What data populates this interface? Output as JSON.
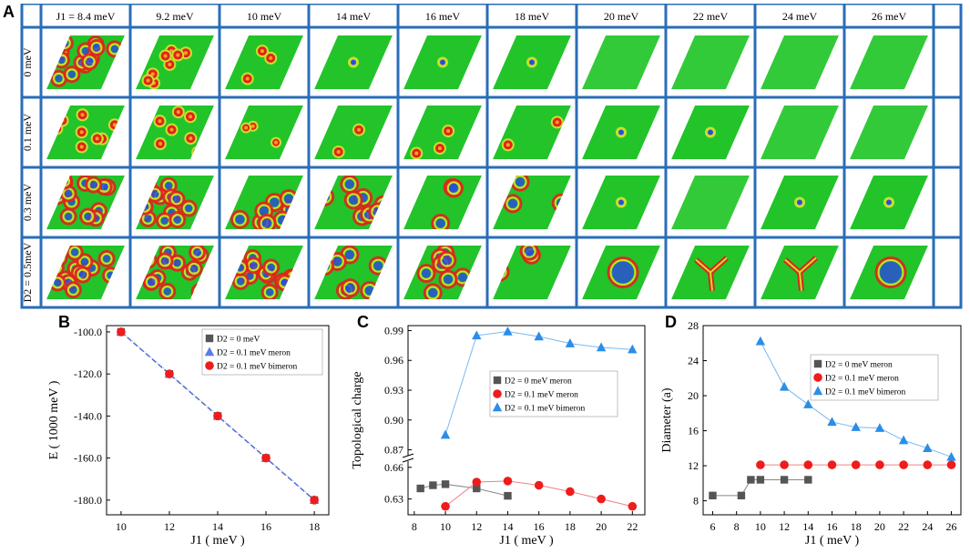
{
  "figure": {
    "panel_letters": [
      "A",
      "B",
      "C",
      "D"
    ],
    "grid": {
      "columns": [
        "J1 = 8.4 meV",
        "9.2 meV",
        "10 meV",
        "14 meV",
        "16 meV",
        "18 meV",
        "20 meV",
        "22 meV",
        "24 meV",
        "26 meV"
      ],
      "rows": [
        "0 meV",
        "0.1 meV",
        "0.3 meV",
        "D2 = 0.5meV"
      ],
      "textures": [
        [
          "dense-domains",
          "bubble-network",
          "few-vortices",
          "single-vortex",
          "single-core",
          "single-core",
          "uniform",
          "uniform",
          "uniform",
          "uniform"
        ],
        [
          "bubble-lattice",
          "bubble-network",
          "elongated-domains",
          "sparse-bubbles",
          "few-bubbles",
          "few-bubbles",
          "single-core",
          "single-core",
          "uniform",
          "uniform"
        ],
        [
          "dense-rings",
          "dense-rings",
          "ring-network",
          "ring-network",
          "sparse-rings",
          "sparse-rings",
          "single-core",
          "uniform",
          "single-core",
          "single-core"
        ],
        [
          "dense-rings",
          "dense-rings",
          "dense-rings",
          "ring-network",
          "ring-network",
          "ring-cluster",
          "large-ring",
          "branched-domain",
          "y-domain",
          "single-domain"
        ]
      ],
      "colors": {
        "background": "#22c42a",
        "low": "#2a4fd6",
        "mid": "#c8e02a",
        "high": "#e0241c",
        "border": "#2a6db8"
      }
    }
  },
  "chart_data": [
    {
      "type": "scatter",
      "panel": "B",
      "xlabel": "J1 ( meV )",
      "ylabel": "E ( 1000 meV )",
      "xlim": [
        9.4,
        18.6
      ],
      "ylim": [
        -187,
        -97
      ],
      "xticks": [
        10,
        12,
        14,
        16,
        18
      ],
      "yticks": [
        -100,
        -120,
        -140,
        -160,
        -180
      ],
      "ytick_labels": [
        "-100.0",
        "-120.0",
        "-140.0",
        "-160.0",
        "-180.0"
      ],
      "legend_position": "top-right",
      "series": [
        {
          "name": "D2 =  0 meV",
          "marker": "square",
          "color": "#555555",
          "x": [
            10,
            12,
            14,
            16,
            18
          ],
          "y": [
            -100,
            -120,
            -140,
            -160,
            -180
          ]
        },
        {
          "name": "D2 = 0.1 meV meron",
          "marker": "triangle",
          "color": "#5a7ce6",
          "x": [
            10,
            12,
            14,
            16,
            18
          ],
          "y": [
            -100,
            -120,
            -140,
            -160,
            -180
          ]
        },
        {
          "name": "D2 = 0.1 meV bimeron",
          "marker": "circle",
          "color": "#ee1c1c",
          "x": [
            10,
            12,
            14,
            16,
            18
          ],
          "y": [
            -100,
            -120,
            -140,
            -160,
            -180
          ]
        }
      ]
    },
    {
      "type": "line",
      "panel": "C",
      "xlabel": "J1 ( meV )",
      "ylabel": "Topological charge",
      "xlim": [
        7.6,
        22.8
      ],
      "axis_break": {
        "lower_ylim": [
          0.615,
          0.665
        ],
        "upper_ylim": [
          0.865,
          0.995
        ]
      },
      "xticks": [
        8,
        10,
        12,
        14,
        16,
        18,
        20,
        22
      ],
      "yticks_lower": [
        0.63,
        0.66
      ],
      "yticks_upper": [
        0.87,
        0.9,
        0.93,
        0.96,
        0.99
      ],
      "ytick_labels_lower": [
        "0.63",
        "0.66"
      ],
      "ytick_labels_upper": [
        "0.87",
        "0.90",
        "0.93",
        "0.96",
        "0.99"
      ],
      "legend_position": "center-right",
      "series": [
        {
          "name": "D2 =  0 meV meron",
          "marker": "square",
          "color": "#555555",
          "x": [
            8.4,
            9.2,
            10,
            12,
            14
          ],
          "y": [
            0.64,
            0.643,
            0.644,
            0.64,
            0.633
          ]
        },
        {
          "name": "D2 = 0.1 meV meron",
          "marker": "circle",
          "color": "#ee1c1c",
          "x": [
            10,
            12,
            14,
            16,
            18,
            20,
            22
          ],
          "y": [
            0.623,
            0.646,
            0.647,
            0.643,
            0.637,
            0.63,
            0.623
          ]
        },
        {
          "name": "D2 = 0.1 meV bimeron",
          "marker": "triangle",
          "color": "#2a8ee8",
          "x": [
            10,
            12,
            14,
            16,
            18,
            20,
            22
          ],
          "y": [
            0.885,
            0.985,
            0.989,
            0.984,
            0.977,
            0.973,
            0.971
          ]
        }
      ]
    },
    {
      "type": "line",
      "panel": "D",
      "xlabel": "J1 ( meV )",
      "ylabel": "Diameter (a)",
      "xlim": [
        5.2,
        26.8
      ],
      "ylim": [
        6.4,
        28
      ],
      "xticks": [
        6,
        8,
        10,
        12,
        14,
        16,
        18,
        20,
        22,
        24,
        26
      ],
      "yticks": [
        8,
        12,
        16,
        20,
        24,
        28
      ],
      "legend_position": "top-right",
      "series": [
        {
          "name": "D2 =  0 meV meron",
          "marker": "square",
          "color": "#555555",
          "x": [
            6,
            8.4,
            9.2,
            10,
            12,
            14
          ],
          "y": [
            8.6,
            8.6,
            10.4,
            10.4,
            10.4,
            10.4
          ]
        },
        {
          "name": "D2 = 0.1 meV meron",
          "marker": "circle",
          "color": "#ee1c1c",
          "x": [
            10,
            12,
            14,
            16,
            18,
            20,
            22,
            24,
            26
          ],
          "y": [
            12.1,
            12.1,
            12.1,
            12.1,
            12.1,
            12.1,
            12.1,
            12.1,
            12.1
          ]
        },
        {
          "name": "D2 = 0.1 meV bimeron",
          "marker": "triangle",
          "color": "#2a8ee8",
          "x": [
            10,
            12,
            14,
            16,
            18,
            20,
            22,
            24,
            26
          ],
          "y": [
            26.2,
            21.0,
            19.0,
            17.0,
            16.4,
            16.3,
            14.9,
            14.0,
            13.0
          ]
        }
      ]
    }
  ]
}
